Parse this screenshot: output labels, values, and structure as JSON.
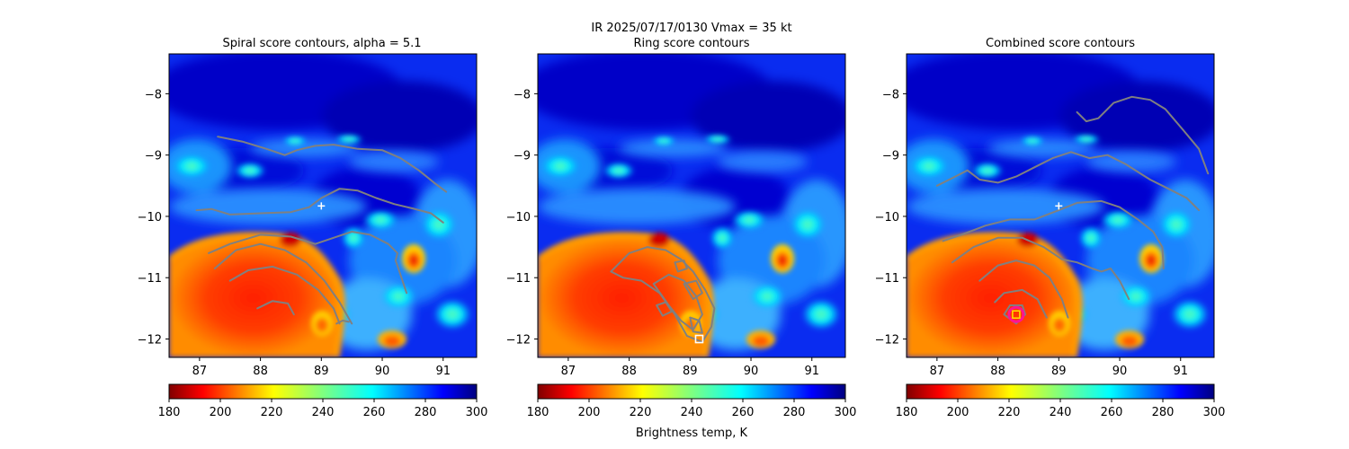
{
  "figure": {
    "suptitle_line1": "IR  2025/07/17/0130    Vmax = 35 kt",
    "colorbar_label": "Brightness temp, K"
  },
  "chart_data": [
    {
      "type": "heatmap",
      "title": "Spiral score contours, alpha =  5.1",
      "xlim": [
        86.5,
        91.55
      ],
      "ylim": [
        -12.3,
        -7.35
      ],
      "xticks": [
        87,
        88,
        89,
        90,
        91
      ],
      "yticks": [
        -8,
        -9,
        -10,
        -11,
        -12
      ],
      "xtick_labels": [
        "87",
        "88",
        "89",
        "90",
        "91"
      ],
      "ytick_labels": [
        "−8",
        "−9",
        "−10",
        "−11",
        "−12"
      ],
      "colorbar": {
        "min": 180,
        "max": 300,
        "ticks": [
          180,
          200,
          220,
          240,
          260,
          280,
          300
        ],
        "colormap": "jet_r"
      },
      "center_marker": {
        "x": 89.0,
        "y": -9.83,
        "symbol": "+"
      },
      "contours": [
        [
          [
            87.3,
            -8.7
          ],
          [
            87.7,
            -8.78
          ],
          [
            88.1,
            -8.9
          ],
          [
            88.4,
            -9.0
          ],
          [
            88.6,
            -8.92
          ],
          [
            88.9,
            -8.85
          ],
          [
            89.2,
            -8.83
          ],
          [
            89.6,
            -8.9
          ],
          [
            90.0,
            -8.92
          ],
          [
            90.3,
            -9.05
          ],
          [
            90.6,
            -9.25
          ],
          [
            90.85,
            -9.45
          ],
          [
            91.05,
            -9.6
          ]
        ],
        [
          [
            86.95,
            -9.9
          ],
          [
            87.2,
            -9.88
          ],
          [
            87.5,
            -9.97
          ],
          [
            88.0,
            -9.95
          ],
          [
            88.5,
            -9.93
          ],
          [
            88.8,
            -9.85
          ],
          [
            89.0,
            -9.7
          ],
          [
            89.3,
            -9.55
          ],
          [
            89.6,
            -9.58
          ],
          [
            89.9,
            -9.7
          ],
          [
            90.2,
            -9.8
          ],
          [
            90.5,
            -9.87
          ],
          [
            90.8,
            -9.95
          ],
          [
            91.0,
            -10.1
          ]
        ],
        [
          [
            87.15,
            -10.6
          ],
          [
            87.5,
            -10.45
          ],
          [
            88.0,
            -10.3
          ],
          [
            88.5,
            -10.33
          ],
          [
            88.9,
            -10.45
          ],
          [
            89.2,
            -10.35
          ],
          [
            89.5,
            -10.25
          ],
          [
            89.8,
            -10.3
          ],
          [
            90.1,
            -10.45
          ],
          [
            90.25,
            -10.6
          ],
          [
            90.22,
            -10.72
          ],
          [
            90.3,
            -10.95
          ],
          [
            90.4,
            -11.25
          ]
        ],
        [
          [
            87.25,
            -10.85
          ],
          [
            87.6,
            -10.55
          ],
          [
            88.0,
            -10.45
          ],
          [
            88.4,
            -10.55
          ],
          [
            88.75,
            -10.75
          ],
          [
            89.05,
            -11.05
          ],
          [
            89.3,
            -11.4
          ],
          [
            89.5,
            -11.75
          ]
        ],
        [
          [
            87.5,
            -11.05
          ],
          [
            87.8,
            -10.88
          ],
          [
            88.2,
            -10.82
          ],
          [
            88.6,
            -10.95
          ],
          [
            88.95,
            -11.2
          ],
          [
            89.2,
            -11.5
          ],
          [
            89.3,
            -11.75
          ]
        ],
        [
          [
            87.95,
            -11.5
          ],
          [
            88.2,
            -11.38
          ],
          [
            88.45,
            -11.42
          ],
          [
            88.55,
            -11.6
          ]
        ],
        [
          [
            89.25,
            -11.75
          ],
          [
            89.35,
            -11.7
          ],
          [
            89.45,
            -11.72
          ]
        ]
      ]
    },
    {
      "type": "heatmap",
      "title": "Ring score contours",
      "xlim": [
        86.5,
        91.55
      ],
      "ylim": [
        -12.3,
        -7.35
      ],
      "xticks": [
        87,
        88,
        89,
        90,
        91
      ],
      "yticks": [
        -8,
        -9,
        -10,
        -11,
        -12
      ],
      "xtick_labels": [
        "87",
        "88",
        "89",
        "90",
        "91"
      ],
      "ytick_labels": [
        "−8",
        "−9",
        "−10",
        "−11",
        "−12"
      ],
      "colorbar": {
        "min": 180,
        "max": 300,
        "ticks": [
          180,
          200,
          220,
          240,
          260,
          280,
          300
        ],
        "colormap": "jet_r"
      },
      "square_marker": {
        "x": 89.15,
        "y": -12.0,
        "color": "#ffffff"
      },
      "contours": [
        [
          [
            87.7,
            -10.9
          ],
          [
            88.0,
            -10.6
          ],
          [
            88.3,
            -10.5
          ],
          [
            88.6,
            -10.55
          ],
          [
            88.85,
            -10.7
          ],
          [
            89.05,
            -10.9
          ],
          [
            89.25,
            -11.2
          ],
          [
            89.4,
            -11.5
          ],
          [
            89.35,
            -11.8
          ],
          [
            89.2,
            -12.05
          ],
          [
            88.95,
            -11.95
          ],
          [
            88.75,
            -11.6
          ],
          [
            88.5,
            -11.25
          ],
          [
            88.2,
            -11.05
          ],
          [
            87.9,
            -11.0
          ],
          [
            87.7,
            -10.9
          ]
        ],
        [
          [
            88.4,
            -11.1
          ],
          [
            88.65,
            -10.95
          ],
          [
            88.9,
            -11.05
          ],
          [
            89.1,
            -11.3
          ],
          [
            89.2,
            -11.6
          ],
          [
            89.05,
            -11.85
          ],
          [
            88.85,
            -11.7
          ],
          [
            88.65,
            -11.45
          ],
          [
            88.4,
            -11.1
          ]
        ],
        [
          [
            88.9,
            -11.1
          ],
          [
            89.1,
            -11.05
          ],
          [
            89.2,
            -11.25
          ],
          [
            89.05,
            -11.35
          ],
          [
            88.9,
            -11.1
          ]
        ],
        [
          [
            88.45,
            -11.45
          ],
          [
            88.6,
            -11.4
          ],
          [
            88.7,
            -11.55
          ],
          [
            88.55,
            -11.62
          ],
          [
            88.45,
            -11.45
          ]
        ],
        [
          [
            89.0,
            -11.65
          ],
          [
            89.15,
            -11.7
          ],
          [
            89.2,
            -11.9
          ],
          [
            89.05,
            -11.88
          ],
          [
            89.0,
            -11.65
          ]
        ],
        [
          [
            88.75,
            -10.75
          ],
          [
            88.9,
            -10.72
          ],
          [
            88.95,
            -10.85
          ],
          [
            88.8,
            -10.9
          ],
          [
            88.75,
            -10.75
          ]
        ]
      ]
    },
    {
      "type": "heatmap",
      "title": "Combined score contours",
      "xlim": [
        86.5,
        91.55
      ],
      "ylim": [
        -12.3,
        -7.35
      ],
      "xticks": [
        87,
        88,
        89,
        90,
        91
      ],
      "yticks": [
        -8,
        -9,
        -10,
        -11,
        -12
      ],
      "xtick_labels": [
        "87",
        "88",
        "89",
        "90",
        "91"
      ],
      "ytick_labels": [
        "−8",
        "−9",
        "−10",
        "−11",
        "−12"
      ],
      "colorbar": {
        "min": 180,
        "max": 300,
        "ticks": [
          180,
          200,
          220,
          240,
          260,
          280,
          300
        ],
        "colormap": "jet_r"
      },
      "center_marker": {
        "x": 89.0,
        "y": -9.83,
        "symbol": "+"
      },
      "ring_marker": {
        "x": 88.3,
        "y": -11.6,
        "ring_color": "#ff1493",
        "square_color": "#ffd700"
      },
      "contours": [
        [
          [
            89.3,
            -8.3
          ],
          [
            89.45,
            -8.45
          ],
          [
            89.65,
            -8.4
          ],
          [
            89.9,
            -8.15
          ],
          [
            90.2,
            -8.05
          ],
          [
            90.5,
            -8.1
          ],
          [
            90.75,
            -8.25
          ],
          [
            91.05,
            -8.6
          ],
          [
            91.3,
            -8.9
          ],
          [
            91.45,
            -9.3
          ]
        ],
        [
          [
            87.0,
            -9.5
          ],
          [
            87.3,
            -9.35
          ],
          [
            87.5,
            -9.25
          ],
          [
            87.7,
            -9.4
          ],
          [
            88.0,
            -9.45
          ],
          [
            88.3,
            -9.35
          ],
          [
            88.6,
            -9.2
          ],
          [
            88.9,
            -9.05
          ],
          [
            89.2,
            -8.95
          ],
          [
            89.5,
            -9.05
          ],
          [
            89.8,
            -9.0
          ],
          [
            90.1,
            -9.15
          ],
          [
            90.5,
            -9.4
          ],
          [
            90.8,
            -9.55
          ],
          [
            91.1,
            -9.7
          ],
          [
            91.3,
            -9.9
          ]
        ],
        [
          [
            87.1,
            -10.4
          ],
          [
            87.4,
            -10.3
          ],
          [
            87.8,
            -10.15
          ],
          [
            88.2,
            -10.05
          ],
          [
            88.6,
            -10.05
          ],
          [
            89.0,
            -9.9
          ],
          [
            89.3,
            -9.78
          ],
          [
            89.7,
            -9.75
          ],
          [
            90.0,
            -9.85
          ],
          [
            90.3,
            -10.05
          ],
          [
            90.55,
            -10.25
          ],
          [
            90.7,
            -10.5
          ],
          [
            90.72,
            -10.85
          ]
        ],
        [
          [
            87.25,
            -10.75
          ],
          [
            87.6,
            -10.5
          ],
          [
            88.0,
            -10.35
          ],
          [
            88.4,
            -10.35
          ],
          [
            88.75,
            -10.5
          ],
          [
            89.05,
            -10.7
          ],
          [
            89.3,
            -10.75
          ],
          [
            89.55,
            -10.85
          ],
          [
            89.7,
            -10.9
          ],
          [
            89.85,
            -10.85
          ],
          [
            90.0,
            -11.05
          ],
          [
            90.15,
            -11.35
          ]
        ],
        [
          [
            87.7,
            -11.05
          ],
          [
            88.0,
            -10.8
          ],
          [
            88.3,
            -10.72
          ],
          [
            88.6,
            -10.8
          ],
          [
            88.85,
            -11.0
          ],
          [
            89.05,
            -11.35
          ],
          [
            89.15,
            -11.65
          ]
        ],
        [
          [
            87.95,
            -11.4
          ],
          [
            88.1,
            -11.25
          ],
          [
            88.4,
            -11.2
          ],
          [
            88.65,
            -11.35
          ],
          [
            88.8,
            -11.65
          ]
        ],
        [
          [
            88.1,
            -11.6
          ],
          [
            88.2,
            -11.45
          ],
          [
            88.4,
            -11.45
          ],
          [
            88.45,
            -11.6
          ],
          [
            88.3,
            -11.75
          ],
          [
            88.1,
            -11.6
          ]
        ]
      ]
    }
  ]
}
